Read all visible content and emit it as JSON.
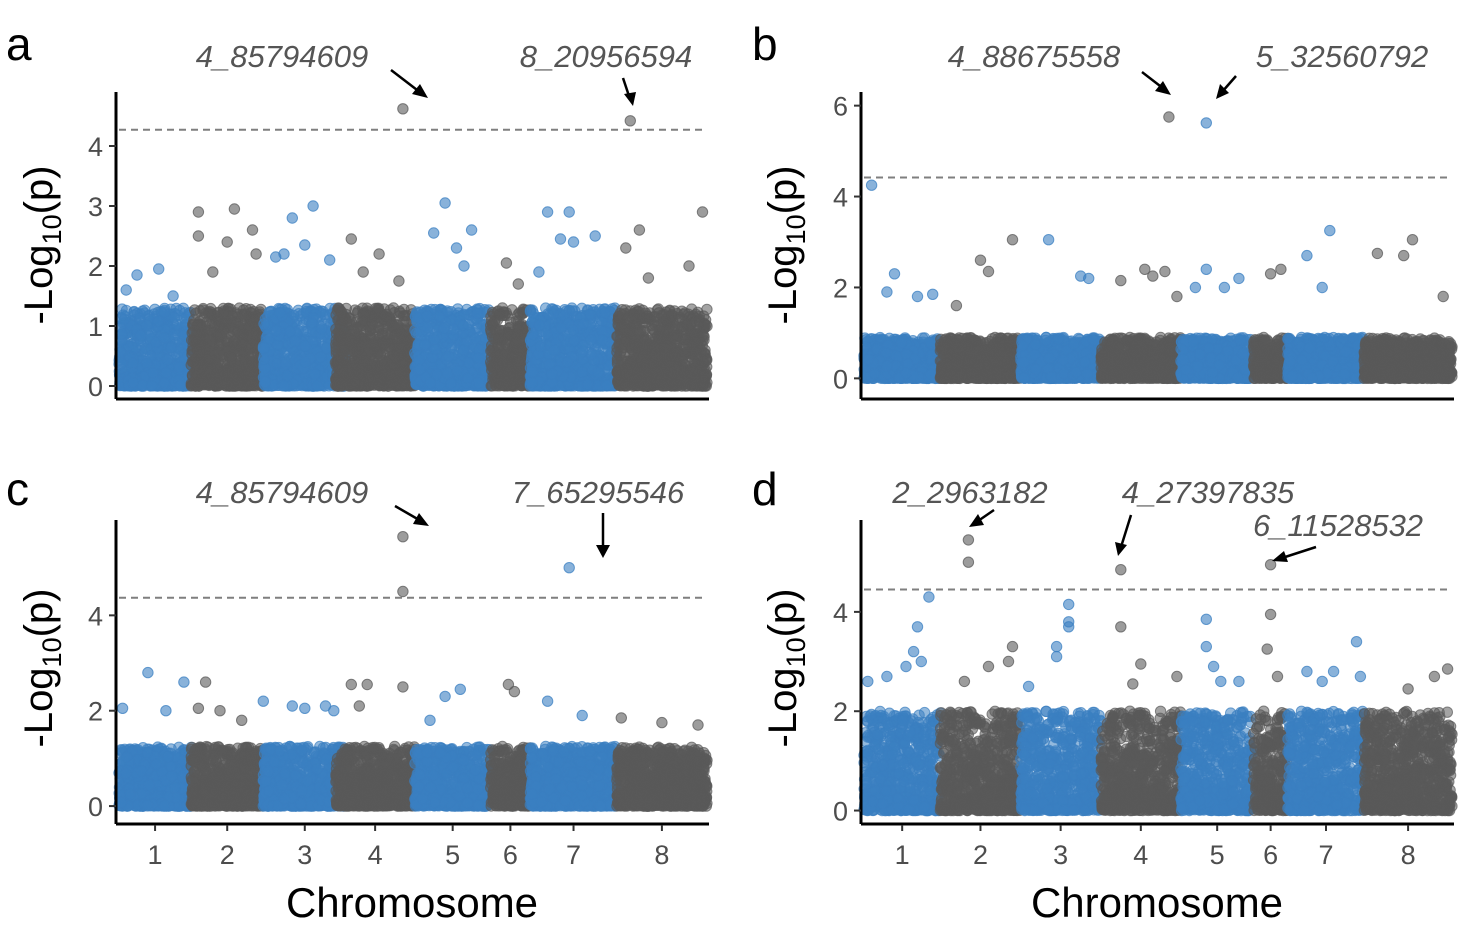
{
  "figure": {
    "xlabel": "Chromosome",
    "ylabel_prefix": "-Log",
    "ylabel_sub": "10",
    "ylabel_suffix": "(p)"
  },
  "colors": {
    "blue": "#3a7fc1",
    "gray": "#5a5a5a",
    "threshold": "#7f7f7f",
    "annotation": "#555555"
  },
  "chart_data": [
    {
      "type": "scatter",
      "panel": "a",
      "xlabel": "",
      "ylabel": "-Log10(p)",
      "chromosomes": [
        "1",
        "2",
        "3",
        "4",
        "5",
        "6",
        "7",
        "8"
      ],
      "chrom_ranges": [
        [
          0,
          1
        ],
        [
          1,
          2
        ],
        [
          2,
          3.15
        ],
        [
          3,
          4.1
        ],
        [
          4.1,
          5.15
        ],
        [
          5.15,
          5.7
        ],
        [
          5.7,
          6.9
        ],
        [
          6.9,
          8.15
        ]
      ],
      "xlim": [
        0,
        8.15
      ],
      "yticks": [
        0,
        1,
        2,
        3,
        4
      ],
      "ylim": [
        -0.1,
        4.9
      ],
      "threshold": 4.27,
      "max_ambient": 1.3,
      "peaks": [
        {
          "chr": 1,
          "pos": 0.1,
          "y": 1.6
        },
        {
          "chr": 1,
          "pos": 0.25,
          "y": 1.85
        },
        {
          "chr": 1,
          "pos": 0.55,
          "y": 1.95
        },
        {
          "chr": 1,
          "pos": 0.75,
          "y": 1.5
        },
        {
          "chr": 2,
          "pos": 0.1,
          "y": 2.9
        },
        {
          "chr": 2,
          "pos": 0.1,
          "y": 2.5
        },
        {
          "chr": 2,
          "pos": 0.6,
          "y": 2.95
        },
        {
          "chr": 2,
          "pos": 0.85,
          "y": 2.6
        },
        {
          "chr": 2,
          "pos": 0.3,
          "y": 1.9
        },
        {
          "chr": 2,
          "pos": 0.5,
          "y": 2.4
        },
        {
          "chr": 2,
          "pos": 0.9,
          "y": 2.2
        },
        {
          "chr": 3,
          "pos": 0.35,
          "y": 2.8
        },
        {
          "chr": 3,
          "pos": 0.6,
          "y": 3.0
        },
        {
          "chr": 3,
          "pos": 0.25,
          "y": 2.2
        },
        {
          "chr": 3,
          "pos": 0.5,
          "y": 2.35
        },
        {
          "chr": 3,
          "pos": 0.15,
          "y": 2.15
        },
        {
          "chr": 3,
          "pos": 0.8,
          "y": 2.1
        },
        {
          "chr": 4,
          "pos": 0.2,
          "y": 2.45
        },
        {
          "chr": 4,
          "pos": 0.55,
          "y": 2.2
        },
        {
          "chr": 4,
          "pos": 0.85,
          "y": 4.62
        },
        {
          "chr": 4,
          "pos": 0.8,
          "y": 1.75
        },
        {
          "chr": 4,
          "pos": 0.35,
          "y": 1.9
        },
        {
          "chr": 5,
          "pos": 0.4,
          "y": 3.05
        },
        {
          "chr": 5,
          "pos": 0.25,
          "y": 2.55
        },
        {
          "chr": 5,
          "pos": 0.55,
          "y": 2.3
        },
        {
          "chr": 5,
          "pos": 0.75,
          "y": 2.6
        },
        {
          "chr": 5,
          "pos": 0.65,
          "y": 2.0
        },
        {
          "chr": 6,
          "pos": 0.4,
          "y": 2.05
        },
        {
          "chr": 6,
          "pos": 0.7,
          "y": 1.7
        },
        {
          "chr": 7,
          "pos": 0.2,
          "y": 2.9
        },
        {
          "chr": 7,
          "pos": 0.45,
          "y": 2.9
        },
        {
          "chr": 7,
          "pos": 0.35,
          "y": 2.45
        },
        {
          "chr": 7,
          "pos": 0.5,
          "y": 2.4
        },
        {
          "chr": 7,
          "pos": 0.75,
          "y": 2.5
        },
        {
          "chr": 7,
          "pos": 0.1,
          "y": 1.9
        },
        {
          "chr": 8,
          "pos": 0.15,
          "y": 4.42
        },
        {
          "chr": 8,
          "pos": 0.25,
          "y": 2.6
        },
        {
          "chr": 8,
          "pos": 0.95,
          "y": 2.9
        },
        {
          "chr": 8,
          "pos": 0.1,
          "y": 2.3
        },
        {
          "chr": 8,
          "pos": 0.8,
          "y": 2.0
        },
        {
          "chr": 8,
          "pos": 0.35,
          "y": 1.8
        }
      ],
      "annotations": [
        {
          "label": "4_85794609",
          "chr": 4,
          "pos": 0.85,
          "y": 4.62
        },
        {
          "label": "8_20956594",
          "chr": 8,
          "pos": 0.15,
          "y": 4.42
        }
      ]
    },
    {
      "type": "scatter",
      "panel": "b",
      "xlabel": "",
      "ylabel": "-Log10(p)",
      "chromosomes": [
        "1",
        "2",
        "3",
        "4",
        "5",
        "6",
        "7",
        "8"
      ],
      "chrom_ranges": [
        [
          0,
          1
        ],
        [
          1,
          2.05
        ],
        [
          2.05,
          3.1
        ],
        [
          3.1,
          4.15
        ],
        [
          4.15,
          5.1
        ],
        [
          5.1,
          5.55
        ],
        [
          5.55,
          6.55
        ],
        [
          6.55,
          7.7
        ]
      ],
      "xlim": [
        0,
        7.7
      ],
      "yticks": [
        0,
        2,
        4,
        6
      ],
      "ylim": [
        -0.3,
        6.3
      ],
      "threshold": 4.42,
      "max_ambient": 0.9,
      "peaks": [
        {
          "chr": 1,
          "pos": 0.1,
          "y": 4.25
        },
        {
          "chr": 1,
          "pos": 0.4,
          "y": 2.3
        },
        {
          "chr": 1,
          "pos": 0.3,
          "y": 1.9
        },
        {
          "chr": 1,
          "pos": 0.7,
          "y": 1.8
        },
        {
          "chr": 1,
          "pos": 0.9,
          "y": 1.85
        },
        {
          "chr": 2,
          "pos": 0.5,
          "y": 2.6
        },
        {
          "chr": 2,
          "pos": 0.9,
          "y": 3.05
        },
        {
          "chr": 2,
          "pos": 0.6,
          "y": 2.35
        },
        {
          "chr": 2,
          "pos": 0.2,
          "y": 1.6
        },
        {
          "chr": 3,
          "pos": 0.35,
          "y": 3.05
        },
        {
          "chr": 3,
          "pos": 0.75,
          "y": 2.25
        },
        {
          "chr": 3,
          "pos": 0.85,
          "y": 2.2
        },
        {
          "chr": 4,
          "pos": 0.25,
          "y": 2.15
        },
        {
          "chr": 4,
          "pos": 0.55,
          "y": 2.4
        },
        {
          "chr": 4,
          "pos": 0.65,
          "y": 2.25
        },
        {
          "chr": 4,
          "pos": 0.8,
          "y": 2.35
        },
        {
          "chr": 4,
          "pos": 0.85,
          "y": 5.75
        },
        {
          "chr": 4,
          "pos": 0.95,
          "y": 1.8
        },
        {
          "chr": 5,
          "pos": 0.35,
          "y": 5.62
        },
        {
          "chr": 5,
          "pos": 0.35,
          "y": 2.4
        },
        {
          "chr": 5,
          "pos": 0.6,
          "y": 2.0
        },
        {
          "chr": 5,
          "pos": 0.8,
          "y": 2.2
        },
        {
          "chr": 5,
          "pos": 0.2,
          "y": 2.0
        },
        {
          "chr": 6,
          "pos": 0.5,
          "y": 2.3
        },
        {
          "chr": 6,
          "pos": 0.8,
          "y": 2.4
        },
        {
          "chr": 7,
          "pos": 0.25,
          "y": 2.7
        },
        {
          "chr": 7,
          "pos": 0.55,
          "y": 3.25
        },
        {
          "chr": 7,
          "pos": 0.45,
          "y": 2.0
        },
        {
          "chr": 8,
          "pos": 0.15,
          "y": 2.75
        },
        {
          "chr": 8,
          "pos": 0.45,
          "y": 2.7
        },
        {
          "chr": 8,
          "pos": 0.55,
          "y": 3.05
        },
        {
          "chr": 8,
          "pos": 0.9,
          "y": 1.8
        }
      ],
      "annotations": [
        {
          "label": "4_88675558",
          "chr": 4,
          "pos": 0.85,
          "y": 5.75
        },
        {
          "label": "5_32560792",
          "chr": 5,
          "pos": 0.35,
          "y": 5.62
        }
      ]
    },
    {
      "type": "scatter",
      "panel": "c",
      "xlabel": "Chromosome",
      "ylabel": "-Log10(p)",
      "chromosomes": [
        "1",
        "2",
        "3",
        "4",
        "5",
        "6",
        "7",
        "8"
      ],
      "chrom_ranges": [
        [
          0,
          1
        ],
        [
          1,
          2
        ],
        [
          2,
          3.15
        ],
        [
          3,
          4.1
        ],
        [
          4.1,
          5.15
        ],
        [
          5.15,
          5.7
        ],
        [
          5.7,
          6.9
        ],
        [
          6.9,
          8.15
        ]
      ],
      "xlim": [
        0,
        8.15
      ],
      "yticks": [
        0,
        2,
        4
      ],
      "ylim": [
        -0.25,
        6.0
      ],
      "threshold": 4.37,
      "max_ambient": 1.25,
      "peaks": [
        {
          "chr": 1,
          "pos": 0.4,
          "y": 2.8
        },
        {
          "chr": 1,
          "pos": 0.05,
          "y": 2.05
        },
        {
          "chr": 1,
          "pos": 0.65,
          "y": 2.0
        },
        {
          "chr": 1,
          "pos": 0.9,
          "y": 2.6
        },
        {
          "chr": 2,
          "pos": 0.2,
          "y": 2.6
        },
        {
          "chr": 2,
          "pos": 0.1,
          "y": 2.05
        },
        {
          "chr": 2,
          "pos": 0.4,
          "y": 2.0
        },
        {
          "chr": 2,
          "pos": 0.7,
          "y": 1.8
        },
        {
          "chr": 3,
          "pos": 0.0,
          "y": 2.2
        },
        {
          "chr": 3,
          "pos": 0.35,
          "y": 2.1
        },
        {
          "chr": 3,
          "pos": 0.5,
          "y": 2.05
        },
        {
          "chr": 3,
          "pos": 0.75,
          "y": 2.1
        },
        {
          "chr": 3,
          "pos": 0.85,
          "y": 2.0
        },
        {
          "chr": 4,
          "pos": 0.2,
          "y": 2.55
        },
        {
          "chr": 4,
          "pos": 0.4,
          "y": 2.55
        },
        {
          "chr": 4,
          "pos": 0.85,
          "y": 5.65
        },
        {
          "chr": 4,
          "pos": 0.85,
          "y": 4.5
        },
        {
          "chr": 4,
          "pos": 0.85,
          "y": 2.5
        },
        {
          "chr": 4,
          "pos": 0.3,
          "y": 2.1
        },
        {
          "chr": 5,
          "pos": 0.4,
          "y": 2.3
        },
        {
          "chr": 5,
          "pos": 0.6,
          "y": 2.45
        },
        {
          "chr": 5,
          "pos": 0.2,
          "y": 1.8
        },
        {
          "chr": 6,
          "pos": 0.45,
          "y": 2.55
        },
        {
          "chr": 6,
          "pos": 0.6,
          "y": 2.4
        },
        {
          "chr": 7,
          "pos": 0.45,
          "y": 5.0
        },
        {
          "chr": 7,
          "pos": 0.2,
          "y": 2.2
        },
        {
          "chr": 7,
          "pos": 0.6,
          "y": 1.9
        },
        {
          "chr": 8,
          "pos": 0.05,
          "y": 1.85
        },
        {
          "chr": 8,
          "pos": 0.5,
          "y": 1.75
        },
        {
          "chr": 8,
          "pos": 0.9,
          "y": 1.7
        }
      ],
      "annotations": [
        {
          "label": "4_85794609",
          "chr": 4,
          "pos": 0.85,
          "y": 5.65
        },
        {
          "label": "7_65295546",
          "chr": 7,
          "pos": 0.45,
          "y": 5.0
        }
      ]
    },
    {
      "type": "scatter",
      "panel": "d",
      "xlabel": "Chromosome",
      "ylabel": "-Log10(p)",
      "chromosomes": [
        "1",
        "2",
        "3",
        "4",
        "5",
        "6",
        "7",
        "8"
      ],
      "chrom_ranges": [
        [
          0,
          1
        ],
        [
          1,
          2.05
        ],
        [
          2.05,
          3.1
        ],
        [
          3.1,
          4.15
        ],
        [
          4.15,
          5.1
        ],
        [
          5.1,
          5.55
        ],
        [
          5.55,
          6.55
        ],
        [
          6.55,
          7.7
        ]
      ],
      "xlim": [
        0,
        7.7
      ],
      "yticks": [
        0,
        2,
        4
      ],
      "ylim": [
        -0.15,
        5.85
      ],
      "threshold": 4.45,
      "max_ambient": 2.0,
      "peaks": [
        {
          "chr": 1,
          "pos": 0.85,
          "y": 4.3
        },
        {
          "chr": 1,
          "pos": 0.7,
          "y": 3.7
        },
        {
          "chr": 1,
          "pos": 0.65,
          "y": 3.2
        },
        {
          "chr": 1,
          "pos": 0.3,
          "y": 2.7
        },
        {
          "chr": 1,
          "pos": 0.05,
          "y": 2.6
        },
        {
          "chr": 1,
          "pos": 0.75,
          "y": 3.0
        },
        {
          "chr": 1,
          "pos": 0.55,
          "y": 2.9
        },
        {
          "chr": 2,
          "pos": 0.35,
          "y": 5.45
        },
        {
          "chr": 2,
          "pos": 0.35,
          "y": 5.0
        },
        {
          "chr": 2,
          "pos": 0.3,
          "y": 2.6
        },
        {
          "chr": 2,
          "pos": 0.6,
          "y": 2.9
        },
        {
          "chr": 2,
          "pos": 0.9,
          "y": 3.3
        },
        {
          "chr": 2,
          "pos": 0.85,
          "y": 3.0
        },
        {
          "chr": 3,
          "pos": 0.6,
          "y": 4.15
        },
        {
          "chr": 3,
          "pos": 0.6,
          "y": 3.8
        },
        {
          "chr": 3,
          "pos": 0.6,
          "y": 3.7
        },
        {
          "chr": 3,
          "pos": 0.45,
          "y": 3.3
        },
        {
          "chr": 3,
          "pos": 0.45,
          "y": 3.1
        },
        {
          "chr": 3,
          "pos": 0.1,
          "y": 2.5
        },
        {
          "chr": 4,
          "pos": 0.25,
          "y": 4.85
        },
        {
          "chr": 4,
          "pos": 0.25,
          "y": 3.7
        },
        {
          "chr": 4,
          "pos": 0.5,
          "y": 2.95
        },
        {
          "chr": 4,
          "pos": 0.95,
          "y": 2.7
        },
        {
          "chr": 4,
          "pos": 0.4,
          "y": 2.55
        },
        {
          "chr": 5,
          "pos": 0.35,
          "y": 3.85
        },
        {
          "chr": 5,
          "pos": 0.35,
          "y": 3.3
        },
        {
          "chr": 5,
          "pos": 0.45,
          "y": 2.9
        },
        {
          "chr": 5,
          "pos": 0.55,
          "y": 2.6
        },
        {
          "chr": 5,
          "pos": 0.8,
          "y": 2.6
        },
        {
          "chr": 6,
          "pos": 0.5,
          "y": 4.95
        },
        {
          "chr": 6,
          "pos": 0.5,
          "y": 3.95
        },
        {
          "chr": 6,
          "pos": 0.4,
          "y": 3.25
        },
        {
          "chr": 6,
          "pos": 0.7,
          "y": 2.7
        },
        {
          "chr": 7,
          "pos": 0.9,
          "y": 3.4
        },
        {
          "chr": 7,
          "pos": 0.25,
          "y": 2.8
        },
        {
          "chr": 7,
          "pos": 0.6,
          "y": 2.8
        },
        {
          "chr": 7,
          "pos": 0.95,
          "y": 2.7
        },
        {
          "chr": 7,
          "pos": 0.45,
          "y": 2.6
        },
        {
          "chr": 8,
          "pos": 0.5,
          "y": 2.45
        },
        {
          "chr": 8,
          "pos": 0.8,
          "y": 2.7
        },
        {
          "chr": 8,
          "pos": 0.95,
          "y": 2.85
        }
      ],
      "annotations": [
        {
          "label": "2_2963182",
          "chr": 2,
          "pos": 0.35,
          "y": 5.45
        },
        {
          "label": "4_27397835",
          "chr": 4,
          "pos": 0.25,
          "y": 4.85
        },
        {
          "label": "6_11528532",
          "chr": 6,
          "pos": 0.5,
          "y": 4.95
        }
      ]
    }
  ]
}
